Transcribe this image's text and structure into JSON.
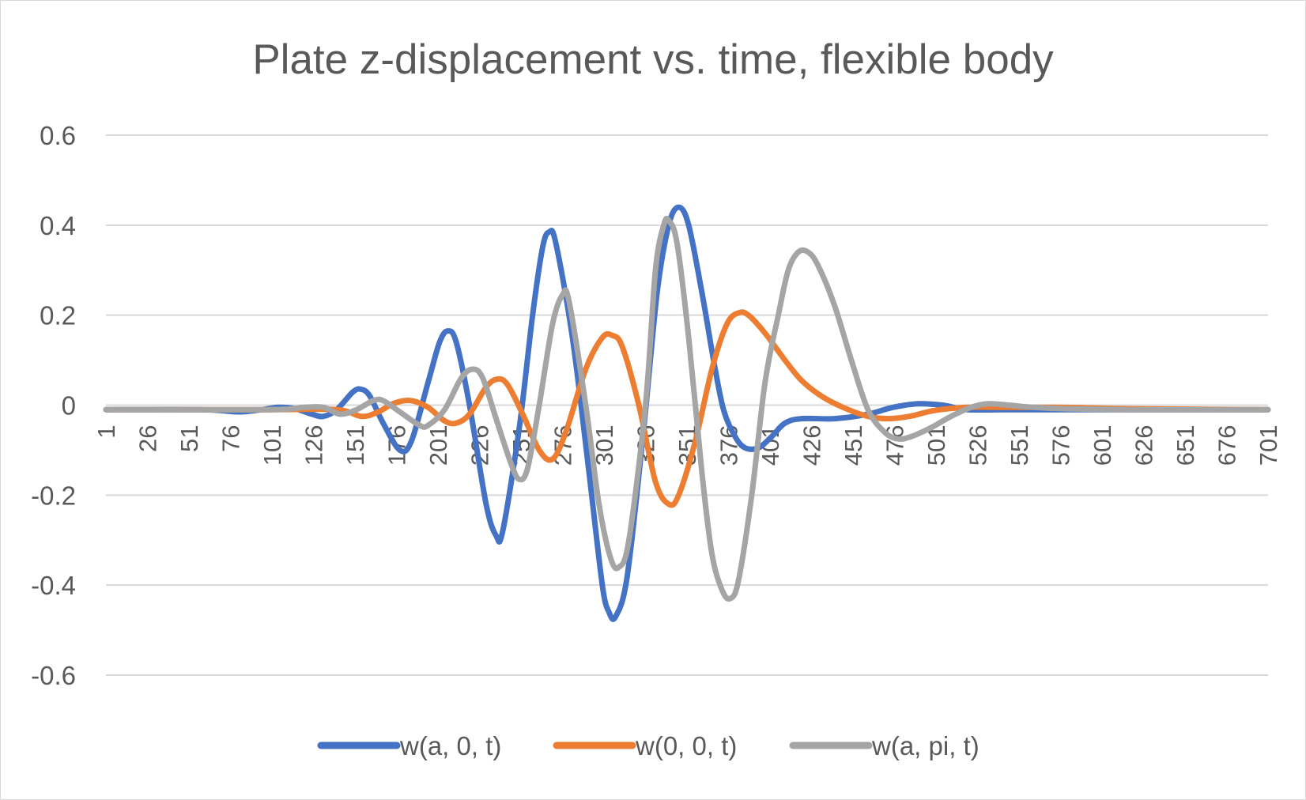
{
  "chart_data": {
    "type": "line",
    "title": "Plate z-displacement vs. time, flexible body",
    "xlabel": "",
    "ylabel": "",
    "x_range": [
      1,
      701
    ],
    "x_ticks": [
      "1",
      "26",
      "51",
      "76",
      "101",
      "126",
      "151",
      "176",
      "201",
      "226",
      "251",
      "276",
      "301",
      "326",
      "351",
      "376",
      "401",
      "426",
      "451",
      "476",
      "501",
      "526",
      "551",
      "576",
      "601",
      "626",
      "651",
      "676",
      "701"
    ],
    "ylim": [
      -0.6,
      0.6
    ],
    "y_ticks": [
      "0.6",
      "0.4",
      "0.2",
      "0",
      "-0.2",
      "-0.4",
      "-0.6"
    ],
    "y_tick_values": [
      0.6,
      0.4,
      0.2,
      0,
      -0.2,
      -0.4,
      -0.6
    ],
    "grid": true,
    "legend_position": "bottom",
    "series": [
      {
        "name": "w(a, 0, t)",
        "color": "#4472c4",
        "points": [
          [
            1,
            -0.01
          ],
          [
            60,
            -0.01
          ],
          [
            80,
            -0.015
          ],
          [
            95,
            -0.01
          ],
          [
            105,
            -0.005
          ],
          [
            115,
            -0.008
          ],
          [
            125,
            -0.02
          ],
          [
            132,
            -0.025
          ],
          [
            140,
            -0.01
          ],
          [
            150,
            0.03
          ],
          [
            155,
            0.035
          ],
          [
            160,
            0.02
          ],
          [
            168,
            -0.04
          ],
          [
            178,
            -0.1
          ],
          [
            185,
            -0.08
          ],
          [
            195,
            0.05
          ],
          [
            202,
            0.14
          ],
          [
            207,
            0.165
          ],
          [
            212,
            0.14
          ],
          [
            220,
            0.0
          ],
          [
            230,
            -0.22
          ],
          [
            236,
            -0.29
          ],
          [
            240,
            -0.28
          ],
          [
            250,
            -0.05
          ],
          [
            258,
            0.2
          ],
          [
            264,
            0.35
          ],
          [
            268,
            0.385
          ],
          [
            272,
            0.36
          ],
          [
            282,
            0.15
          ],
          [
            292,
            -0.15
          ],
          [
            300,
            -0.4
          ],
          [
            304,
            -0.46
          ],
          [
            308,
            -0.47
          ],
          [
            315,
            -0.38
          ],
          [
            325,
            -0.05
          ],
          [
            333,
            0.25
          ],
          [
            340,
            0.4
          ],
          [
            346,
            0.44
          ],
          [
            352,
            0.4
          ],
          [
            360,
            0.25
          ],
          [
            367,
            0.1
          ],
          [
            373,
            -0.01
          ],
          [
            380,
            -0.07
          ],
          [
            386,
            -0.095
          ],
          [
            394,
            -0.095
          ],
          [
            402,
            -0.07
          ],
          [
            410,
            -0.04
          ],
          [
            420,
            -0.03
          ],
          [
            440,
            -0.03
          ],
          [
            460,
            -0.02
          ],
          [
            475,
            -0.005
          ],
          [
            490,
            0.003
          ],
          [
            505,
            0.0
          ],
          [
            520,
            -0.01
          ],
          [
            550,
            -0.01
          ],
          [
            600,
            -0.01
          ],
          [
            701,
            -0.01
          ]
        ]
      },
      {
        "name": "w(0, 0, t)",
        "color": "#ed7d31",
        "points": [
          [
            1,
            -0.01
          ],
          [
            100,
            -0.01
          ],
          [
            140,
            -0.01
          ],
          [
            155,
            -0.025
          ],
          [
            165,
            -0.015
          ],
          [
            175,
            0.005
          ],
          [
            185,
            0.01
          ],
          [
            195,
            -0.005
          ],
          [
            205,
            -0.035
          ],
          [
            212,
            -0.04
          ],
          [
            220,
            -0.02
          ],
          [
            230,
            0.04
          ],
          [
            237,
            0.058
          ],
          [
            243,
            0.045
          ],
          [
            252,
            -0.02
          ],
          [
            262,
            -0.1
          ],
          [
            270,
            -0.12
          ],
          [
            278,
            -0.06
          ],
          [
            290,
            0.08
          ],
          [
            300,
            0.15
          ],
          [
            306,
            0.155
          ],
          [
            312,
            0.13
          ],
          [
            322,
            0.0
          ],
          [
            332,
            -0.17
          ],
          [
            340,
            -0.22
          ],
          [
            346,
            -0.2
          ],
          [
            356,
            -0.08
          ],
          [
            366,
            0.08
          ],
          [
            375,
            0.18
          ],
          [
            382,
            0.205
          ],
          [
            388,
            0.2
          ],
          [
            398,
            0.16
          ],
          [
            410,
            0.1
          ],
          [
            420,
            0.055
          ],
          [
            432,
            0.02
          ],
          [
            445,
            -0.005
          ],
          [
            460,
            -0.025
          ],
          [
            472,
            -0.03
          ],
          [
            485,
            -0.025
          ],
          [
            500,
            -0.012
          ],
          [
            520,
            -0.005
          ],
          [
            545,
            -0.005
          ],
          [
            575,
            -0.005
          ],
          [
            620,
            -0.008
          ],
          [
            701,
            -0.01
          ]
        ]
      },
      {
        "name": "w(a, pi, t)",
        "color": "#a5a5a5",
        "points": [
          [
            1,
            -0.01
          ],
          [
            100,
            -0.01
          ],
          [
            120,
            -0.005
          ],
          [
            132,
            -0.005
          ],
          [
            142,
            -0.02
          ],
          [
            152,
            -0.01
          ],
          [
            162,
            0.01
          ],
          [
            168,
            0.01
          ],
          [
            178,
            -0.015
          ],
          [
            190,
            -0.045
          ],
          [
            195,
            -0.045
          ],
          [
            205,
            -0.01
          ],
          [
            215,
            0.06
          ],
          [
            222,
            0.08
          ],
          [
            228,
            0.06
          ],
          [
            236,
            -0.03
          ],
          [
            245,
            -0.13
          ],
          [
            250,
            -0.165
          ],
          [
            255,
            -0.14
          ],
          [
            262,
            0.0
          ],
          [
            270,
            0.18
          ],
          [
            276,
            0.245
          ],
          [
            280,
            0.23
          ],
          [
            290,
            0.0
          ],
          [
            298,
            -0.22
          ],
          [
            305,
            -0.34
          ],
          [
            310,
            -0.36
          ],
          [
            316,
            -0.3
          ],
          [
            326,
            0.0
          ],
          [
            332,
            0.3
          ],
          [
            337,
            0.4
          ],
          [
            340,
            0.41
          ],
          [
            345,
            0.36
          ],
          [
            352,
            0.15
          ],
          [
            360,
            -0.15
          ],
          [
            366,
            -0.33
          ],
          [
            372,
            -0.41
          ],
          [
            377,
            -0.43
          ],
          [
            382,
            -0.39
          ],
          [
            390,
            -0.2
          ],
          [
            398,
            0.05
          ],
          [
            406,
            0.2
          ],
          [
            412,
            0.3
          ],
          [
            418,
            0.34
          ],
          [
            424,
            0.34
          ],
          [
            430,
            0.31
          ],
          [
            440,
            0.22
          ],
          [
            450,
            0.1
          ],
          [
            460,
            -0.01
          ],
          [
            470,
            -0.06
          ],
          [
            478,
            -0.075
          ],
          [
            486,
            -0.07
          ],
          [
            498,
            -0.05
          ],
          [
            510,
            -0.025
          ],
          [
            522,
            -0.005
          ],
          [
            532,
            0.003
          ],
          [
            545,
            0.0
          ],
          [
            560,
            -0.005
          ],
          [
            580,
            -0.008
          ],
          [
            620,
            -0.01
          ],
          [
            701,
            -0.01
          ]
        ]
      }
    ]
  }
}
